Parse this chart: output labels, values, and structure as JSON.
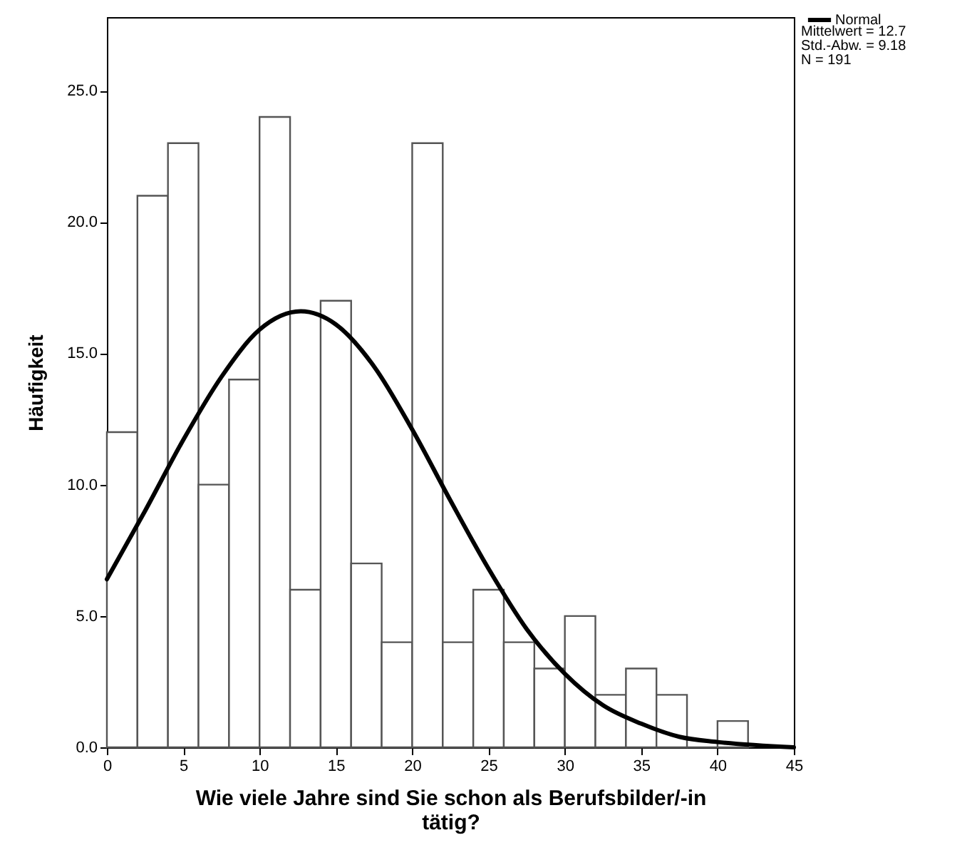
{
  "chart_data": {
    "type": "histogram",
    "xlabel": "Wie viele Jahre sind Sie schon als Berufsbilder/-in tätig?",
    "ylabel": "Häufigkeit",
    "bins": [
      0,
      2,
      4,
      6,
      8,
      10,
      12,
      14,
      16,
      18,
      20,
      22,
      24,
      26,
      28,
      30,
      32,
      34,
      36,
      38,
      40,
      42
    ],
    "values": [
      12,
      21,
      23,
      10,
      14,
      24,
      6,
      17,
      7,
      4,
      23,
      4,
      6,
      4,
      3,
      5,
      2,
      3,
      2,
      0,
      1
    ],
    "color": "#555555",
    "series": [
      {
        "name": "Normal",
        "type": "line",
        "color": "#000000",
        "x": [
          0,
          2.5,
          5,
          7.5,
          10,
          12.7,
          15,
          17.5,
          20,
          22.5,
          25,
          27.5,
          30,
          32.5,
          35,
          37.5,
          40,
          45
        ],
        "values": [
          6.4,
          9.0,
          11.7,
          14.1,
          15.9,
          16.6,
          16.1,
          14.5,
          12.1,
          9.4,
          6.8,
          4.5,
          2.8,
          1.6,
          0.9,
          0.4,
          0.2,
          0.0
        ]
      }
    ],
    "annotations": [
      "Mittelwert = 12.7",
      "Std.-Abw. = 9.18",
      "N = 191"
    ],
    "xlim": [
      0,
      45
    ],
    "xticks": [
      0,
      5,
      10,
      15,
      20,
      25,
      30,
      35,
      40,
      45
    ],
    "ylim": [
      0,
      27.8
    ],
    "yticks": [
      {
        "value": 0,
        "label": "0.0"
      },
      {
        "value": 5,
        "label": "5.0"
      },
      {
        "value": 10,
        "label": "10.0"
      },
      {
        "value": 15,
        "label": "15.0"
      },
      {
        "value": 20,
        "label": "20.0"
      },
      {
        "value": 25,
        "label": "25.0"
      }
    ],
    "legend": "top right",
    "grid": false,
    "marker": "none",
    "line_style": "solid"
  }
}
